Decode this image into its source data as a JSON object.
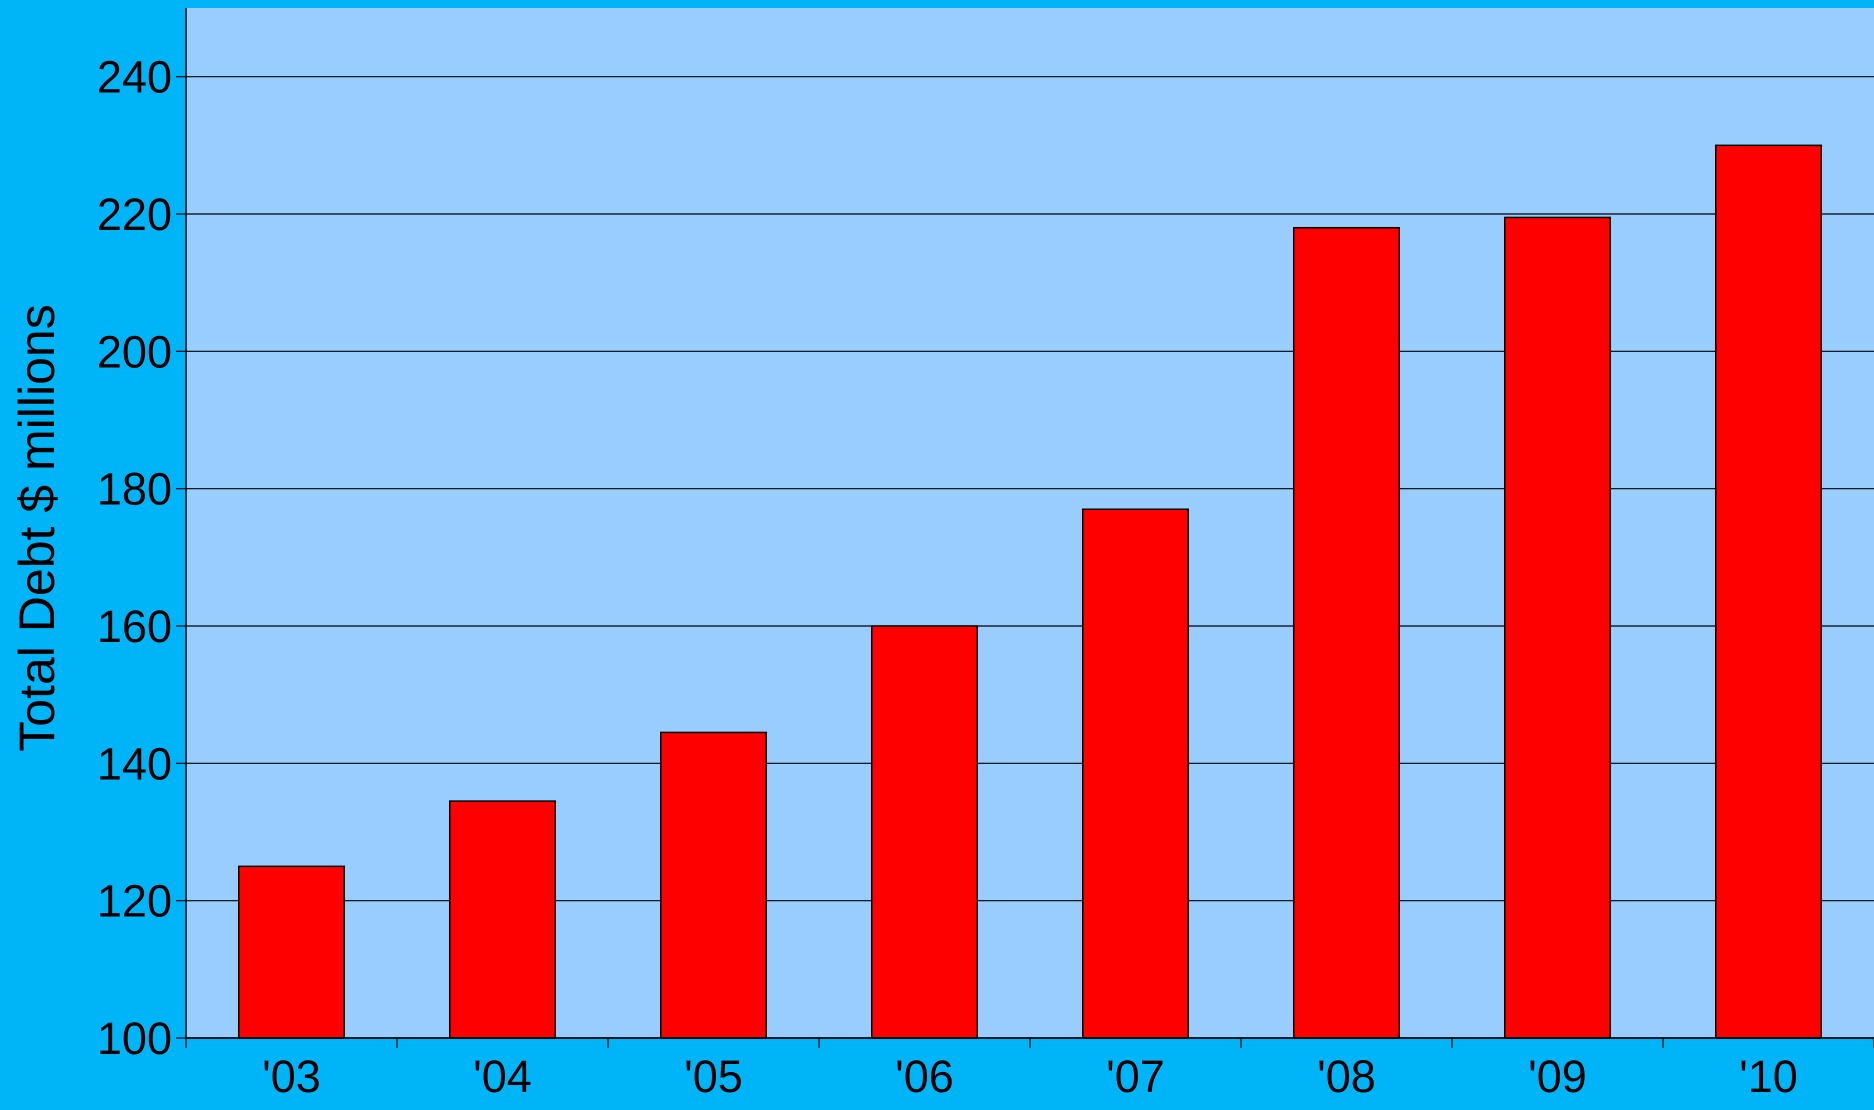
{
  "chart_data": {
    "type": "bar",
    "title": "",
    "xlabel": "",
    "ylabel": "Total Debt $ millions",
    "categories": [
      "'03",
      "'04",
      "'05",
      "'06",
      "'07",
      "'08",
      "'09",
      "'10"
    ],
    "series": [
      {
        "values": [
          125,
          134.5,
          144.5,
          160,
          177,
          218,
          219.5,
          230
        ]
      }
    ],
    "ylim": [
      100,
      250
    ],
    "yticks": [
      100,
      120,
      140,
      160,
      180,
      200,
      220,
      240
    ],
    "grid": true,
    "legend": "none"
  },
  "colors": {
    "page_background": "#00b4f8",
    "plot_background": "#99ccff",
    "bar_fill": "#ff0000",
    "bar_stroke": "#000000",
    "gridline": "#000000"
  }
}
